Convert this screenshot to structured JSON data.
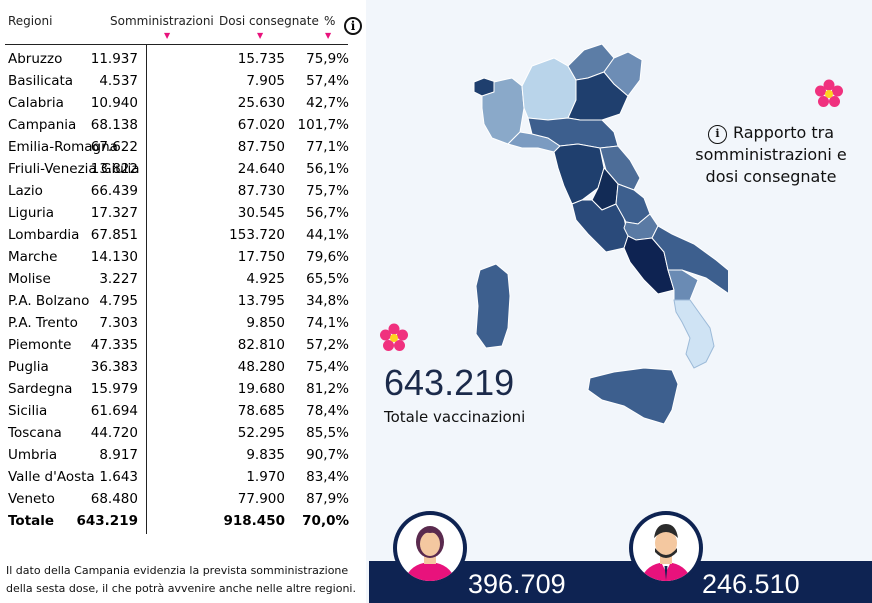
{
  "table": {
    "headers": {
      "region": "Regioni",
      "somministrazioni": "Somministrazioni",
      "dosi": "Dosi consegnate",
      "pct": "%"
    },
    "sort_icon": "sort-down-icon",
    "rows": [
      {
        "name": "Abruzzo",
        "som": "11.937",
        "dos": "15.735",
        "pct": "75,9%"
      },
      {
        "name": "Basilicata",
        "som": "4.537",
        "dos": "7.905",
        "pct": "57,4%"
      },
      {
        "name": "Calabria",
        "som": "10.940",
        "dos": "25.630",
        "pct": "42,7%"
      },
      {
        "name": "Campania",
        "som": "68.138",
        "dos": "67.020",
        "pct": "101,7%"
      },
      {
        "name": "Emilia-Romagna",
        "som": "67.622",
        "dos": "87.750",
        "pct": "77,1%"
      },
      {
        "name": "Friuli-Venezia Giulia",
        "som": "13.822",
        "dos": "24.640",
        "pct": "56,1%"
      },
      {
        "name": "Lazio",
        "som": "66.439",
        "dos": "87.730",
        "pct": "75,7%"
      },
      {
        "name": "Liguria",
        "som": "17.327",
        "dos": "30.545",
        "pct": "56,7%"
      },
      {
        "name": "Lombardia",
        "som": "67.851",
        "dos": "153.720",
        "pct": "44,1%"
      },
      {
        "name": "Marche",
        "som": "14.130",
        "dos": "17.750",
        "pct": "79,6%"
      },
      {
        "name": "Molise",
        "som": "3.227",
        "dos": "4.925",
        "pct": "65,5%"
      },
      {
        "name": "P.A. Bolzano",
        "som": "4.795",
        "dos": "13.795",
        "pct": "34,8%"
      },
      {
        "name": "P.A. Trento",
        "som": "7.303",
        "dos": "9.850",
        "pct": "74,1%"
      },
      {
        "name": "Piemonte",
        "som": "47.335",
        "dos": "82.810",
        "pct": "57,2%"
      },
      {
        "name": "Puglia",
        "som": "36.383",
        "dos": "48.280",
        "pct": "75,4%"
      },
      {
        "name": "Sardegna",
        "som": "15.979",
        "dos": "19.680",
        "pct": "81,2%"
      },
      {
        "name": "Sicilia",
        "som": "61.694",
        "dos": "78.685",
        "pct": "78,4%"
      },
      {
        "name": "Toscana",
        "som": "44.720",
        "dos": "52.295",
        "pct": "85,5%"
      },
      {
        "name": "Umbria",
        "som": "8.917",
        "dos": "9.835",
        "pct": "90,7%"
      },
      {
        "name": "Valle d'Aosta",
        "som": "1.643",
        "dos": "1.970",
        "pct": "83,4%"
      },
      {
        "name": "Veneto",
        "som": "68.480",
        "dos": "77.900",
        "pct": "87,9%"
      }
    ],
    "total": {
      "name": "Totale",
      "som": "643.219",
      "dos": "918.450",
      "pct": "70,0%"
    }
  },
  "note": "Il dato della Campania evidenzia la prevista somministrazione della sesta dose, il che potrà avvenire anche nelle altre regioni.",
  "info_glyph": "i",
  "rapporto": {
    "title": "Rapporto tra somministrazioni e dosi consegnate"
  },
  "summary": {
    "total_value": "643.219",
    "total_label": "Totale vaccinazioni"
  },
  "gender": {
    "female_count": "396.709",
    "male_count": "246.510"
  },
  "colors": {
    "accent_pink": "#e8127c",
    "navy": "#0e2352",
    "flower": "#f0317e"
  }
}
